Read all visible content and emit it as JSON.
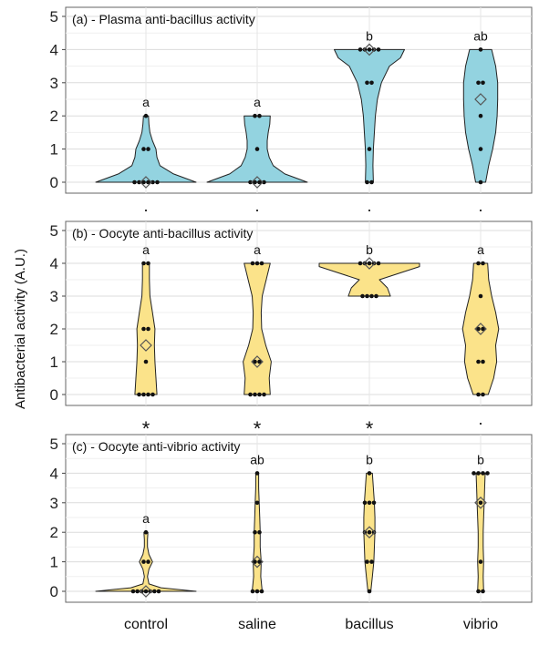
{
  "chart_data": {
    "type": "violin",
    "ylabel": "Antibacterial activity (A.U.)",
    "categories": [
      "control",
      "saline",
      "bacillus",
      "vibrio"
    ],
    "ylim": [
      0,
      5
    ],
    "yticks": [
      0,
      1,
      2,
      3,
      4,
      5
    ],
    "grid": true,
    "panels": [
      {
        "title": "(a) - Plasma anti-bacillus activity",
        "fill": "#93D3E0",
        "letters": [
          "a",
          "a",
          "b",
          "ab"
        ],
        "markers": [
          "·",
          "·",
          "·",
          "·"
        ],
        "groups": [
          {
            "points": [
              0,
              0,
              0,
              0,
              0,
              0,
              1,
              1,
              2
            ],
            "mean": 0.0,
            "density": [
              [
                0,
                1.0
              ],
              [
                0.25,
                0.55
              ],
              [
                0.5,
                0.28
              ],
              [
                0.75,
                0.22
              ],
              [
                1,
                0.2
              ],
              [
                1.25,
                0.13
              ],
              [
                1.5,
                0.08
              ],
              [
                1.75,
                0.06
              ],
              [
                2,
                0.05
              ]
            ]
          },
          {
            "points": [
              0,
              0,
              0,
              0,
              1,
              2,
              2
            ],
            "mean": 0.0,
            "density": [
              [
                0,
                1.0
              ],
              [
                0.25,
                0.55
              ],
              [
                0.5,
                0.32
              ],
              [
                0.75,
                0.24
              ],
              [
                1,
                0.2
              ],
              [
                1.25,
                0.2
              ],
              [
                1.5,
                0.22
              ],
              [
                1.75,
                0.25
              ],
              [
                2,
                0.26
              ]
            ]
          },
          {
            "points": [
              0,
              0,
              1,
              3,
              3,
              4,
              4,
              4,
              4,
              4
            ],
            "mean": 4.0,
            "density": [
              [
                0,
                0.08
              ],
              [
                0.5,
                0.07
              ],
              [
                1,
                0.08
              ],
              [
                1.5,
                0.1
              ],
              [
                2,
                0.12
              ],
              [
                2.5,
                0.16
              ],
              [
                3,
                0.24
              ],
              [
                3.5,
                0.4
              ],
              [
                3.75,
                0.62
              ],
              [
                4,
                0.7
              ]
            ]
          },
          {
            "points": [
              0,
              1,
              2,
              3,
              3,
              4
            ],
            "mean": 2.5,
            "density": [
              [
                0,
                0.1
              ],
              [
                0.5,
                0.16
              ],
              [
                1,
                0.24
              ],
              [
                1.5,
                0.3
              ],
              [
                2,
                0.33
              ],
              [
                2.5,
                0.34
              ],
              [
                3,
                0.34
              ],
              [
                3.5,
                0.3
              ],
              [
                3.75,
                0.26
              ],
              [
                4,
                0.22
              ]
            ]
          }
        ]
      },
      {
        "title": "(b) - Oocyte anti-bacillus activity",
        "fill": "#FBE38A",
        "letters": [
          "a",
          "a",
          "b",
          "a"
        ],
        "markers": [
          "*",
          "*",
          "*",
          "·"
        ],
        "groups": [
          {
            "points": [
              0,
              0,
              0,
              0,
              1,
              2,
              2,
              4,
              4
            ],
            "mean": 1.5,
            "density": [
              [
                0,
                0.22
              ],
              [
                0.5,
                0.2
              ],
              [
                1,
                0.18
              ],
              [
                1.5,
                0.17
              ],
              [
                2,
                0.18
              ],
              [
                2.5,
                0.13
              ],
              [
                3,
                0.08
              ],
              [
                3.5,
                0.07
              ],
              [
                4,
                0.07
              ]
            ]
          },
          {
            "points": [
              0,
              0,
              0,
              0,
              1,
              1,
              4,
              4,
              4
            ],
            "mean": 1.0,
            "density": [
              [
                0,
                0.26
              ],
              [
                0.5,
                0.24
              ],
              [
                1,
                0.28
              ],
              [
                1.5,
                0.17
              ],
              [
                2,
                0.09
              ],
              [
                2.5,
                0.08
              ],
              [
                3,
                0.1
              ],
              [
                3.5,
                0.18
              ],
              [
                4,
                0.26
              ]
            ]
          },
          {
            "points": [
              3,
              3,
              3,
              3,
              4,
              4,
              4,
              4,
              4
            ],
            "mean": 4.0,
            "density": [
              [
                3,
                0.42
              ],
              [
                3.25,
                0.36
              ],
              [
                3.5,
                0.2
              ],
              [
                3.75,
                0.7
              ],
              [
                3.9,
                1.0
              ],
              [
                4,
                1.0
              ]
            ]
          },
          {
            "points": [
              0,
              0,
              1,
              1,
              2,
              2,
              3,
              4,
              4
            ],
            "mean": 2.0,
            "density": [
              [
                0,
                0.15
              ],
              [
                0.5,
                0.26
              ],
              [
                1,
                0.32
              ],
              [
                1.5,
                0.3
              ],
              [
                2,
                0.36
              ],
              [
                2.5,
                0.3
              ],
              [
                3,
                0.22
              ],
              [
                3.5,
                0.16
              ],
              [
                4,
                0.14
              ]
            ]
          }
        ]
      },
      {
        "title": "(c) - Oocyte anti-vibrio activity",
        "fill": "#FBE38A",
        "letters": [
          "a",
          "ab",
          "b",
          "b"
        ],
        "markers": [
          "",
          "",
          "",
          ""
        ],
        "groups": [
          {
            "points": [
              0,
              0,
              0,
              0,
              0,
              0,
              0,
              1,
              1,
              2
            ],
            "mean": 0.0,
            "density": [
              [
                0,
                1.0
              ],
              [
                0.12,
                0.3
              ],
              [
                0.25,
                0.06
              ],
              [
                0.5,
                0.03
              ],
              [
                0.75,
                0.06
              ],
              [
                1,
                0.13
              ],
              [
                1.25,
                0.06
              ],
              [
                1.5,
                0.03
              ],
              [
                1.75,
                0.03
              ],
              [
                2,
                0.04
              ]
            ]
          },
          {
            "points": [
              0,
              0,
              0,
              1,
              1,
              2,
              2,
              3,
              4
            ],
            "mean": 1.0,
            "density": [
              [
                0,
                0.1
              ],
              [
                0.5,
                0.07
              ],
              [
                1,
                0.08
              ],
              [
                1.5,
                0.06
              ],
              [
                2,
                0.06
              ],
              [
                2.5,
                0.05
              ],
              [
                3,
                0.04
              ],
              [
                3.5,
                0.03
              ],
              [
                4,
                0.03
              ]
            ]
          },
          {
            "points": [
              0,
              1,
              1,
              2,
              2,
              2,
              3,
              3,
              3,
              4
            ],
            "mean": 2.0,
            "density": [
              [
                0,
                0.03
              ],
              [
                0.5,
                0.06
              ],
              [
                1,
                0.09
              ],
              [
                1.5,
                0.1
              ],
              [
                2,
                0.11
              ],
              [
                2.5,
                0.11
              ],
              [
                3,
                0.1
              ],
              [
                3.5,
                0.08
              ],
              [
                4,
                0.06
              ]
            ]
          },
          {
            "points": [
              0,
              0,
              1,
              3,
              4,
              4,
              4,
              4
            ],
            "mean": 3.0,
            "density": [
              [
                0,
                0.06
              ],
              [
                0.5,
                0.05
              ],
              [
                1,
                0.06
              ],
              [
                1.5,
                0.05
              ],
              [
                2,
                0.05
              ],
              [
                2.5,
                0.06
              ],
              [
                3,
                0.07
              ],
              [
                3.5,
                0.08
              ],
              [
                4,
                0.09
              ]
            ]
          }
        ]
      }
    ]
  }
}
